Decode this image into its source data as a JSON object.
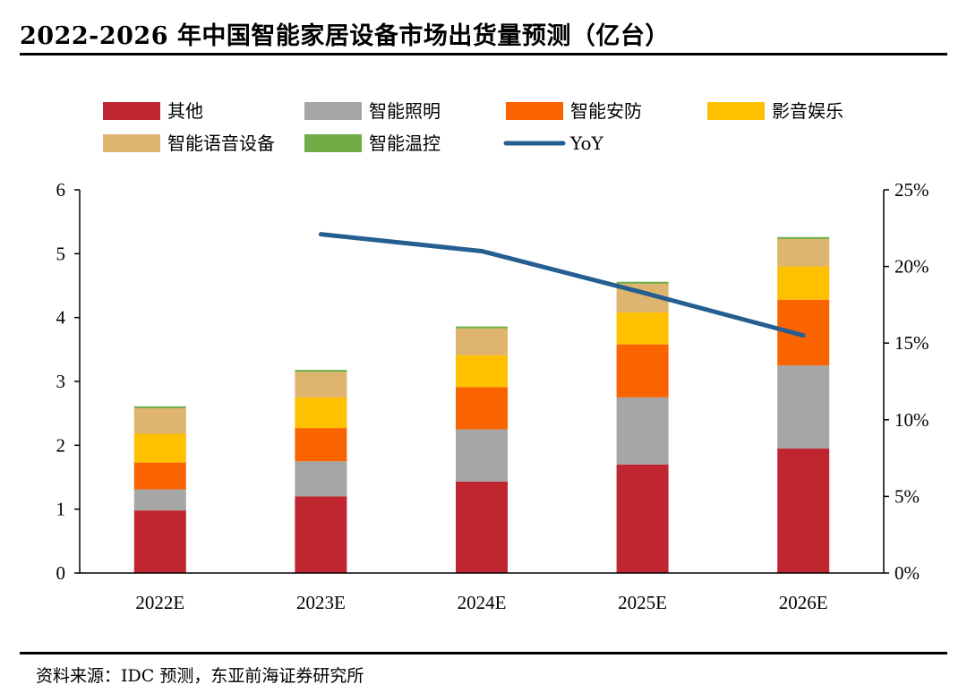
{
  "title": "2022-2026 年中国智能家居设备市场出货量预测（亿台）",
  "source": "资料来源：IDC 预测，东亚前海证券研究所",
  "chart_data": {
    "type": "bar",
    "stacked": true,
    "categories": [
      "2022E",
      "2023E",
      "2024E",
      "2025E",
      "2026E"
    ],
    "series": [
      {
        "name": "其他",
        "color": "#C0262F",
        "values": [
          0.98,
          1.2,
          1.43,
          1.7,
          1.95
        ]
      },
      {
        "name": "智能照明",
        "color": "#A6A6A6",
        "values": [
          0.33,
          0.55,
          0.82,
          1.05,
          1.3
        ]
      },
      {
        "name": "智能安防",
        "color": "#FA6400",
        "values": [
          0.42,
          0.52,
          0.66,
          0.83,
          1.03
        ]
      },
      {
        "name": "影音娱乐",
        "color": "#FFC000",
        "values": [
          0.45,
          0.48,
          0.5,
          0.5,
          0.52
        ]
      },
      {
        "name": "智能语音设备",
        "color": "#DFB46E",
        "values": [
          0.4,
          0.4,
          0.42,
          0.45,
          0.43
        ]
      },
      {
        "name": "智能温控",
        "color": "#70AD47",
        "values": [
          0.03,
          0.03,
          0.03,
          0.03,
          0.03
        ]
      }
    ],
    "line": {
      "name": "YoY",
      "color": "#255E91",
      "axis": "right",
      "values": [
        null,
        0.221,
        0.21,
        0.183,
        0.155
      ]
    },
    "ylim": [
      0,
      6
    ],
    "yticks": [
      "0",
      "1",
      "2",
      "3",
      "4",
      "5",
      "6"
    ],
    "y2lim": [
      0,
      0.25
    ],
    "y2ticks": [
      "0%",
      "5%",
      "10%",
      "15%",
      "20%",
      "25%"
    ],
    "grid": false,
    "legend_position": "top"
  }
}
